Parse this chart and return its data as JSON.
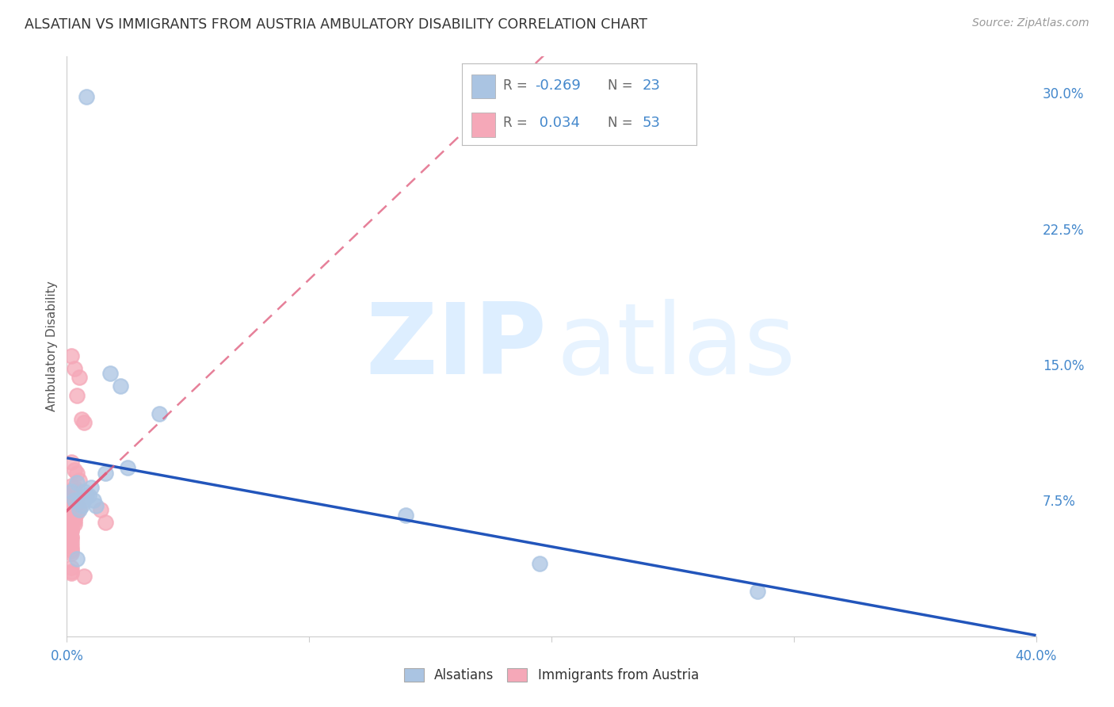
{
  "title": "ALSATIAN VS IMMIGRANTS FROM AUSTRIA AMBULATORY DISABILITY CORRELATION CHART",
  "source": "Source: ZipAtlas.com",
  "ylabel": "Ambulatory Disability",
  "xlim": [
    0.0,
    0.4
  ],
  "ylim": [
    0.0,
    0.32
  ],
  "yticks": [
    0.075,
    0.15,
    0.225,
    0.3
  ],
  "ytick_labels": [
    "7.5%",
    "15.0%",
    "22.5%",
    "30.0%"
  ],
  "xtick_left_label": "0.0%",
  "xtick_right_label": "40.0%",
  "alsatians_R": -0.269,
  "alsatians_N": 23,
  "austria_R": 0.034,
  "austria_N": 53,
  "alsatian_color": "#aac4e2",
  "austria_color": "#f5a8b8",
  "alsatian_line_color": "#2255bb",
  "austria_line_color": "#e06080",
  "background_color": "#ffffff",
  "alsatians_x": [
    0.008,
    0.022,
    0.018,
    0.038,
    0.016,
    0.004,
    0.002,
    0.005,
    0.007,
    0.008,
    0.01,
    0.012,
    0.005,
    0.003,
    0.006,
    0.009,
    0.025,
    0.004,
    0.007,
    0.011,
    0.195,
    0.285,
    0.14
  ],
  "alsatians_y": [
    0.298,
    0.138,
    0.145,
    0.123,
    0.09,
    0.085,
    0.08,
    0.075,
    0.075,
    0.078,
    0.082,
    0.072,
    0.07,
    0.075,
    0.072,
    0.078,
    0.093,
    0.043,
    0.08,
    0.075,
    0.04,
    0.025,
    0.067
  ],
  "austria_x": [
    0.002,
    0.003,
    0.004,
    0.005,
    0.006,
    0.007,
    0.002,
    0.003,
    0.004,
    0.005,
    0.002,
    0.003,
    0.003,
    0.002,
    0.004,
    0.002,
    0.003,
    0.002,
    0.005,
    0.002,
    0.002,
    0.003,
    0.002,
    0.002,
    0.002,
    0.004,
    0.002,
    0.003,
    0.002,
    0.002,
    0.002,
    0.002,
    0.002,
    0.002,
    0.003,
    0.002,
    0.002,
    0.002,
    0.003,
    0.002,
    0.002,
    0.002,
    0.002,
    0.002,
    0.002,
    0.002,
    0.003,
    0.016,
    0.014,
    0.002,
    0.002,
    0.002,
    0.007
  ],
  "austria_y": [
    0.155,
    0.148,
    0.133,
    0.143,
    0.12,
    0.118,
    0.096,
    0.092,
    0.09,
    0.086,
    0.083,
    0.08,
    0.082,
    0.079,
    0.077,
    0.075,
    0.075,
    0.073,
    0.071,
    0.07,
    0.071,
    0.07,
    0.069,
    0.072,
    0.071,
    0.068,
    0.07,
    0.065,
    0.068,
    0.067,
    0.066,
    0.064,
    0.065,
    0.063,
    0.062,
    0.06,
    0.059,
    0.058,
    0.064,
    0.055,
    0.054,
    0.052,
    0.05,
    0.048,
    0.047,
    0.046,
    0.067,
    0.063,
    0.07,
    0.038,
    0.036,
    0.035,
    0.033
  ],
  "legend_R1": "R = -0.269",
  "legend_N1": "N = 23",
  "legend_R2": "R =  0.034",
  "legend_N2": "N = 53",
  "legend_label1": "Alsatians",
  "legend_label2": "Immigrants from Austria"
}
